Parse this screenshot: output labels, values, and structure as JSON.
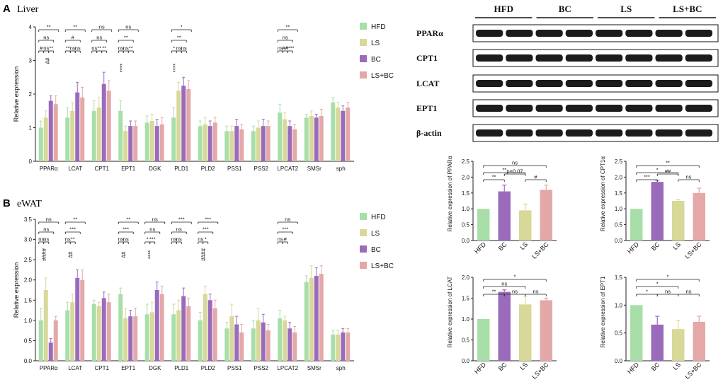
{
  "colors": {
    "HFD": "#a8dfa8",
    "LS": "#d8d899",
    "BC": "#9b6bbb",
    "LSBC": "#e4a8a8",
    "axis": "#222222"
  },
  "panels": {
    "A": {
      "letter": "A",
      "title": "Liver"
    },
    "B": {
      "letter": "B",
      "title": "eWAT"
    }
  },
  "legend": [
    "HFD",
    "LS",
    "BC",
    "LS+BC"
  ],
  "western_blot": {
    "groups": [
      "HFD",
      "BC",
      "LS",
      "LS+BC"
    ],
    "proteins": [
      "PPARα",
      "CPT1",
      "LCAT",
      "EPT1",
      "β-actin"
    ]
  },
  "annotations": {
    "liver": [
      "**",
      "**",
      "ns",
      "ns",
      "*",
      "**",
      "ns",
      "#",
      "ns",
      "**",
      "**",
      "ns",
      "#",
      "ns",
      "**",
      "**",
      "ns",
      "ns",
      "ns",
      "**",
      "**",
      "ns",
      "ns",
      "**",
      "*",
      "ns",
      "ns",
      "ns",
      "##",
      "****",
      "****"
    ],
    "ewat": [
      "ns",
      "**",
      "**",
      "ns",
      "***",
      "***",
      "ns",
      "ns",
      "***",
      "***",
      "ns",
      "ns",
      "***",
      "***",
      "ns",
      "ns",
      "ns",
      "**",
      "ns",
      "ns",
      "*",
      "***",
      "ns",
      "ns",
      "ns",
      "*",
      "ns",
      "#",
      "ns",
      "####",
      "##",
      "##",
      "****",
      "####",
      "****"
    ],
    "ppara": [
      "ns",
      "**",
      "**",
      "p=0.07",
      "#"
    ],
    "cpt1": [
      "**",
      "*",
      "***",
      "##",
      "ns"
    ],
    "lcat": [
      "*",
      "ns",
      "**",
      "ns",
      "ns"
    ],
    "ept1": [
      "*",
      "*",
      "*",
      "ns",
      "ns"
    ]
  },
  "chart_data": [
    {
      "id": "liver",
      "type": "bar",
      "title": "Liver",
      "ylabel": "Relative expression",
      "ylim": [
        0,
        4
      ],
      "yticks": [
        "0",
        "1",
        "2",
        "3",
        "4"
      ],
      "categories": [
        "PPARα",
        "LCAT",
        "CPT1",
        "EPT1",
        "DGK",
        "PLD1",
        "PLD2",
        "PSS1",
        "PSS2",
        "LPCAT2",
        "SMSr",
        "sph"
      ],
      "series": [
        {
          "name": "HFD",
          "values": [
            1.0,
            1.3,
            1.5,
            1.5,
            1.15,
            1.3,
            1.05,
            0.9,
            0.9,
            1.45,
            1.3,
            1.75
          ]
        },
        {
          "name": "LS",
          "values": [
            1.3,
            1.5,
            1.6,
            0.9,
            1.2,
            2.1,
            1.1,
            0.9,
            1.0,
            1.25,
            1.35,
            1.6
          ]
        },
        {
          "name": "BC",
          "values": [
            1.8,
            2.05,
            2.3,
            1.05,
            1.05,
            2.25,
            1.05,
            1.05,
            1.05,
            1.05,
            1.3,
            1.5
          ]
        },
        {
          "name": "LS+BC",
          "values": [
            1.7,
            1.9,
            2.1,
            1.05,
            1.1,
            2.15,
            1.15,
            0.95,
            1.05,
            0.95,
            1.35,
            1.6
          ]
        }
      ],
      "errors": [
        [
          0.2,
          0.3,
          0.3,
          0.3,
          0.2,
          0.3,
          0.15,
          0.15,
          0.15,
          0.25,
          0.1,
          0.15
        ],
        [
          0.2,
          0.25,
          0.3,
          0.15,
          0.2,
          0.25,
          0.2,
          0.15,
          0.2,
          0.2,
          0.15,
          0.15
        ],
        [
          0.15,
          0.3,
          0.35,
          0.15,
          0.2,
          0.25,
          0.15,
          0.2,
          0.2,
          0.15,
          0.1,
          0.15
        ],
        [
          0.25,
          0.3,
          0.3,
          0.15,
          0.2,
          0.25,
          0.15,
          0.15,
          0.15,
          0.15,
          0.2,
          0.15
        ]
      ]
    },
    {
      "id": "ewat",
      "type": "bar",
      "title": "eWAT",
      "ylabel": "Relative expression",
      "ylim": [
        0,
        3.5
      ],
      "yticks": [
        "0.0",
        "0.5",
        "1.0",
        "1.5",
        "2.0",
        "2.5",
        "3.0",
        "3.5"
      ],
      "categories": [
        "PPARα",
        "LCAT",
        "CPT1",
        "EPT1",
        "DGK",
        "PLD1",
        "PLD2",
        "PSS1",
        "PSS2",
        "LPCAT2",
        "SMSr",
        "sph"
      ],
      "series": [
        {
          "name": "HFD",
          "values": [
            1.0,
            1.25,
            1.4,
            1.65,
            1.15,
            1.15,
            1.0,
            0.8,
            0.8,
            1.05,
            1.95,
            0.65
          ]
        },
        {
          "name": "LS",
          "values": [
            1.75,
            1.45,
            1.35,
            1.05,
            1.2,
            1.25,
            1.65,
            1.1,
            1.0,
            1.0,
            2.05,
            0.65
          ]
        },
        {
          "name": "BC",
          "values": [
            0.45,
            2.05,
            1.55,
            1.1,
            1.75,
            1.6,
            1.5,
            0.9,
            0.95,
            0.8,
            2.1,
            0.7
          ]
        },
        {
          "name": "LS+BC",
          "values": [
            1.0,
            2.0,
            1.45,
            1.1,
            1.65,
            1.35,
            1.3,
            0.7,
            0.75,
            0.7,
            2.15,
            0.7
          ]
        }
      ],
      "errors": [
        [
          0.3,
          0.2,
          0.1,
          0.15,
          0.25,
          0.25,
          0.2,
          0.15,
          0.2,
          0.2,
          0.15,
          0.1
        ],
        [
          0.3,
          0.2,
          0.1,
          0.25,
          0.25,
          0.25,
          0.2,
          0.3,
          0.3,
          0.1,
          0.3,
          0.1
        ],
        [
          0.1,
          0.2,
          0.15,
          0.15,
          0.2,
          0.2,
          0.15,
          0.2,
          0.2,
          0.15,
          0.2,
          0.1
        ],
        [
          0.1,
          0.25,
          0.2,
          0.2,
          0.2,
          0.2,
          0.2,
          0.2,
          0.15,
          0.15,
          0.2,
          0.1
        ]
      ]
    },
    {
      "id": "ppara",
      "type": "bar",
      "ylabel": "Relative expression of PPARα",
      "ylim": [
        0,
        2.5
      ],
      "yticks": [
        "0.0",
        "0.5",
        "1.0",
        "1.5",
        "2.0",
        "2.5"
      ],
      "categories": [
        "HFD",
        "BC",
        "LS",
        "LS+BC"
      ],
      "values": [
        1.0,
        1.55,
        0.95,
        1.6
      ],
      "errors": [
        0,
        0.2,
        0.2,
        0.15
      ]
    },
    {
      "id": "cpt1",
      "type": "bar",
      "ylabel": "Relative expression of CPT1α",
      "ylim": [
        0,
        2.5
      ],
      "yticks": [
        "0.0",
        "0.5",
        "1.0",
        "1.5",
        "2.0",
        "2.5"
      ],
      "categories": [
        "HFD",
        "BC",
        "LS",
        "LS+BC"
      ],
      "values": [
        1.0,
        1.85,
        1.25,
        1.5
      ],
      "errors": [
        0,
        0.05,
        0.05,
        0.15
      ]
    },
    {
      "id": "lcat",
      "type": "bar",
      "ylabel": "Relative expression of LCAT",
      "ylim": [
        0,
        2.0
      ],
      "yticks": [
        "0.0",
        "0.5",
        "1.0",
        "1.5",
        "2.0"
      ],
      "categories": [
        "HFD",
        "BC",
        "LS",
        "LS+BC"
      ],
      "values": [
        1.0,
        1.65,
        1.35,
        1.45
      ],
      "errors": [
        0,
        0.05,
        0.2,
        0.05
      ]
    },
    {
      "id": "ept1",
      "type": "bar",
      "ylabel": "Relative expression of EPT1",
      "ylim": [
        0,
        1.5
      ],
      "yticks": [
        "0.0",
        "0.5",
        "1.0",
        "1.5"
      ],
      "categories": [
        "HFD",
        "BC",
        "LS",
        "LS+BC"
      ],
      "values": [
        1.0,
        0.65,
        0.57,
        0.7
      ],
      "errors": [
        0,
        0.15,
        0.15,
        0.1
      ]
    }
  ]
}
